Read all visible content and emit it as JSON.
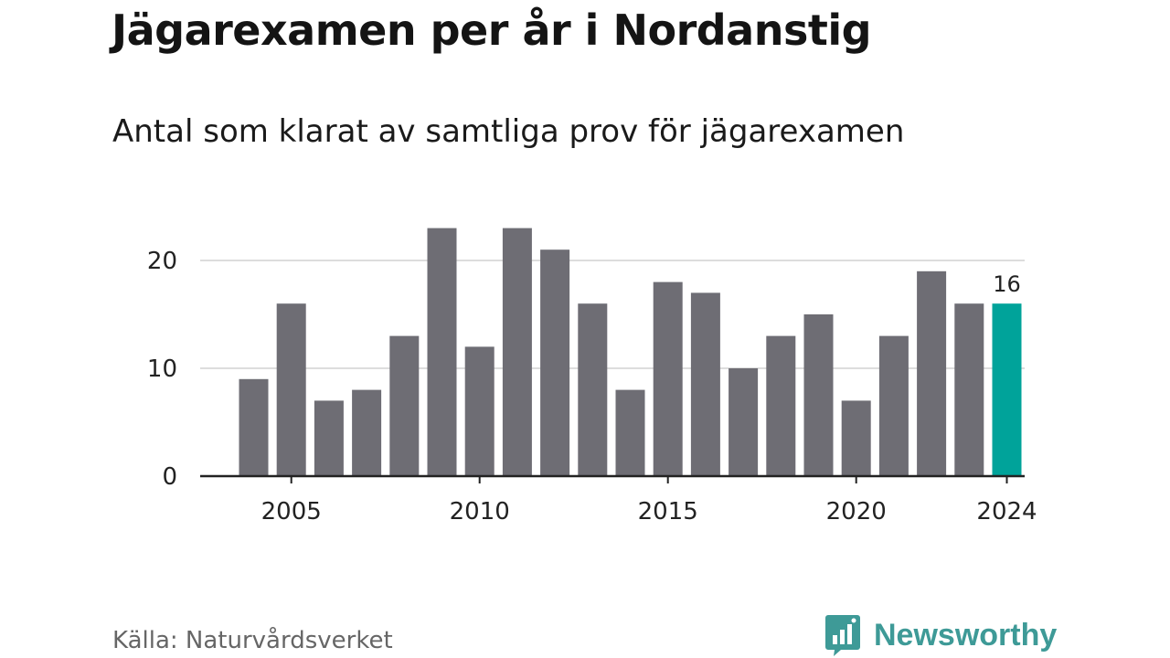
{
  "title": "Jägarexamen per år i Nordanstig",
  "subtitle": "Antal som klarat av samtliga prov för jägarexamen",
  "source": "Källa: Naturvårdsverket",
  "brand": {
    "name": "Newsworthy",
    "icon": "bar-chart-logo-icon",
    "color": "#3e9a97"
  },
  "colors": {
    "bar": "#6e6d74",
    "highlight": "#00a39a",
    "grid": "#dddddd",
    "axis": "#222222",
    "text": "#222222"
  },
  "chart_data": {
    "type": "bar",
    "categories": [
      "2004",
      "2005",
      "2006",
      "2007",
      "2008",
      "2009",
      "2010",
      "2011",
      "2012",
      "2013",
      "2014",
      "2015",
      "2016",
      "2017",
      "2018",
      "2019",
      "2020",
      "2021",
      "2022",
      "2023",
      "2024"
    ],
    "values": [
      9,
      16,
      7,
      8,
      13,
      23,
      12,
      23,
      21,
      16,
      8,
      18,
      17,
      10,
      13,
      15,
      7,
      13,
      19,
      16,
      16
    ],
    "x_tick_labels": [
      "2005",
      "2010",
      "2015",
      "2020",
      "2024"
    ],
    "y_ticks": [
      0,
      10,
      20
    ],
    "ylim": [
      0,
      25
    ],
    "highlight_index": 20,
    "data_labels": [
      {
        "index": 20,
        "text": "16"
      }
    ],
    "xlabel": "",
    "ylabel": "",
    "grid": true,
    "legend": "none"
  }
}
